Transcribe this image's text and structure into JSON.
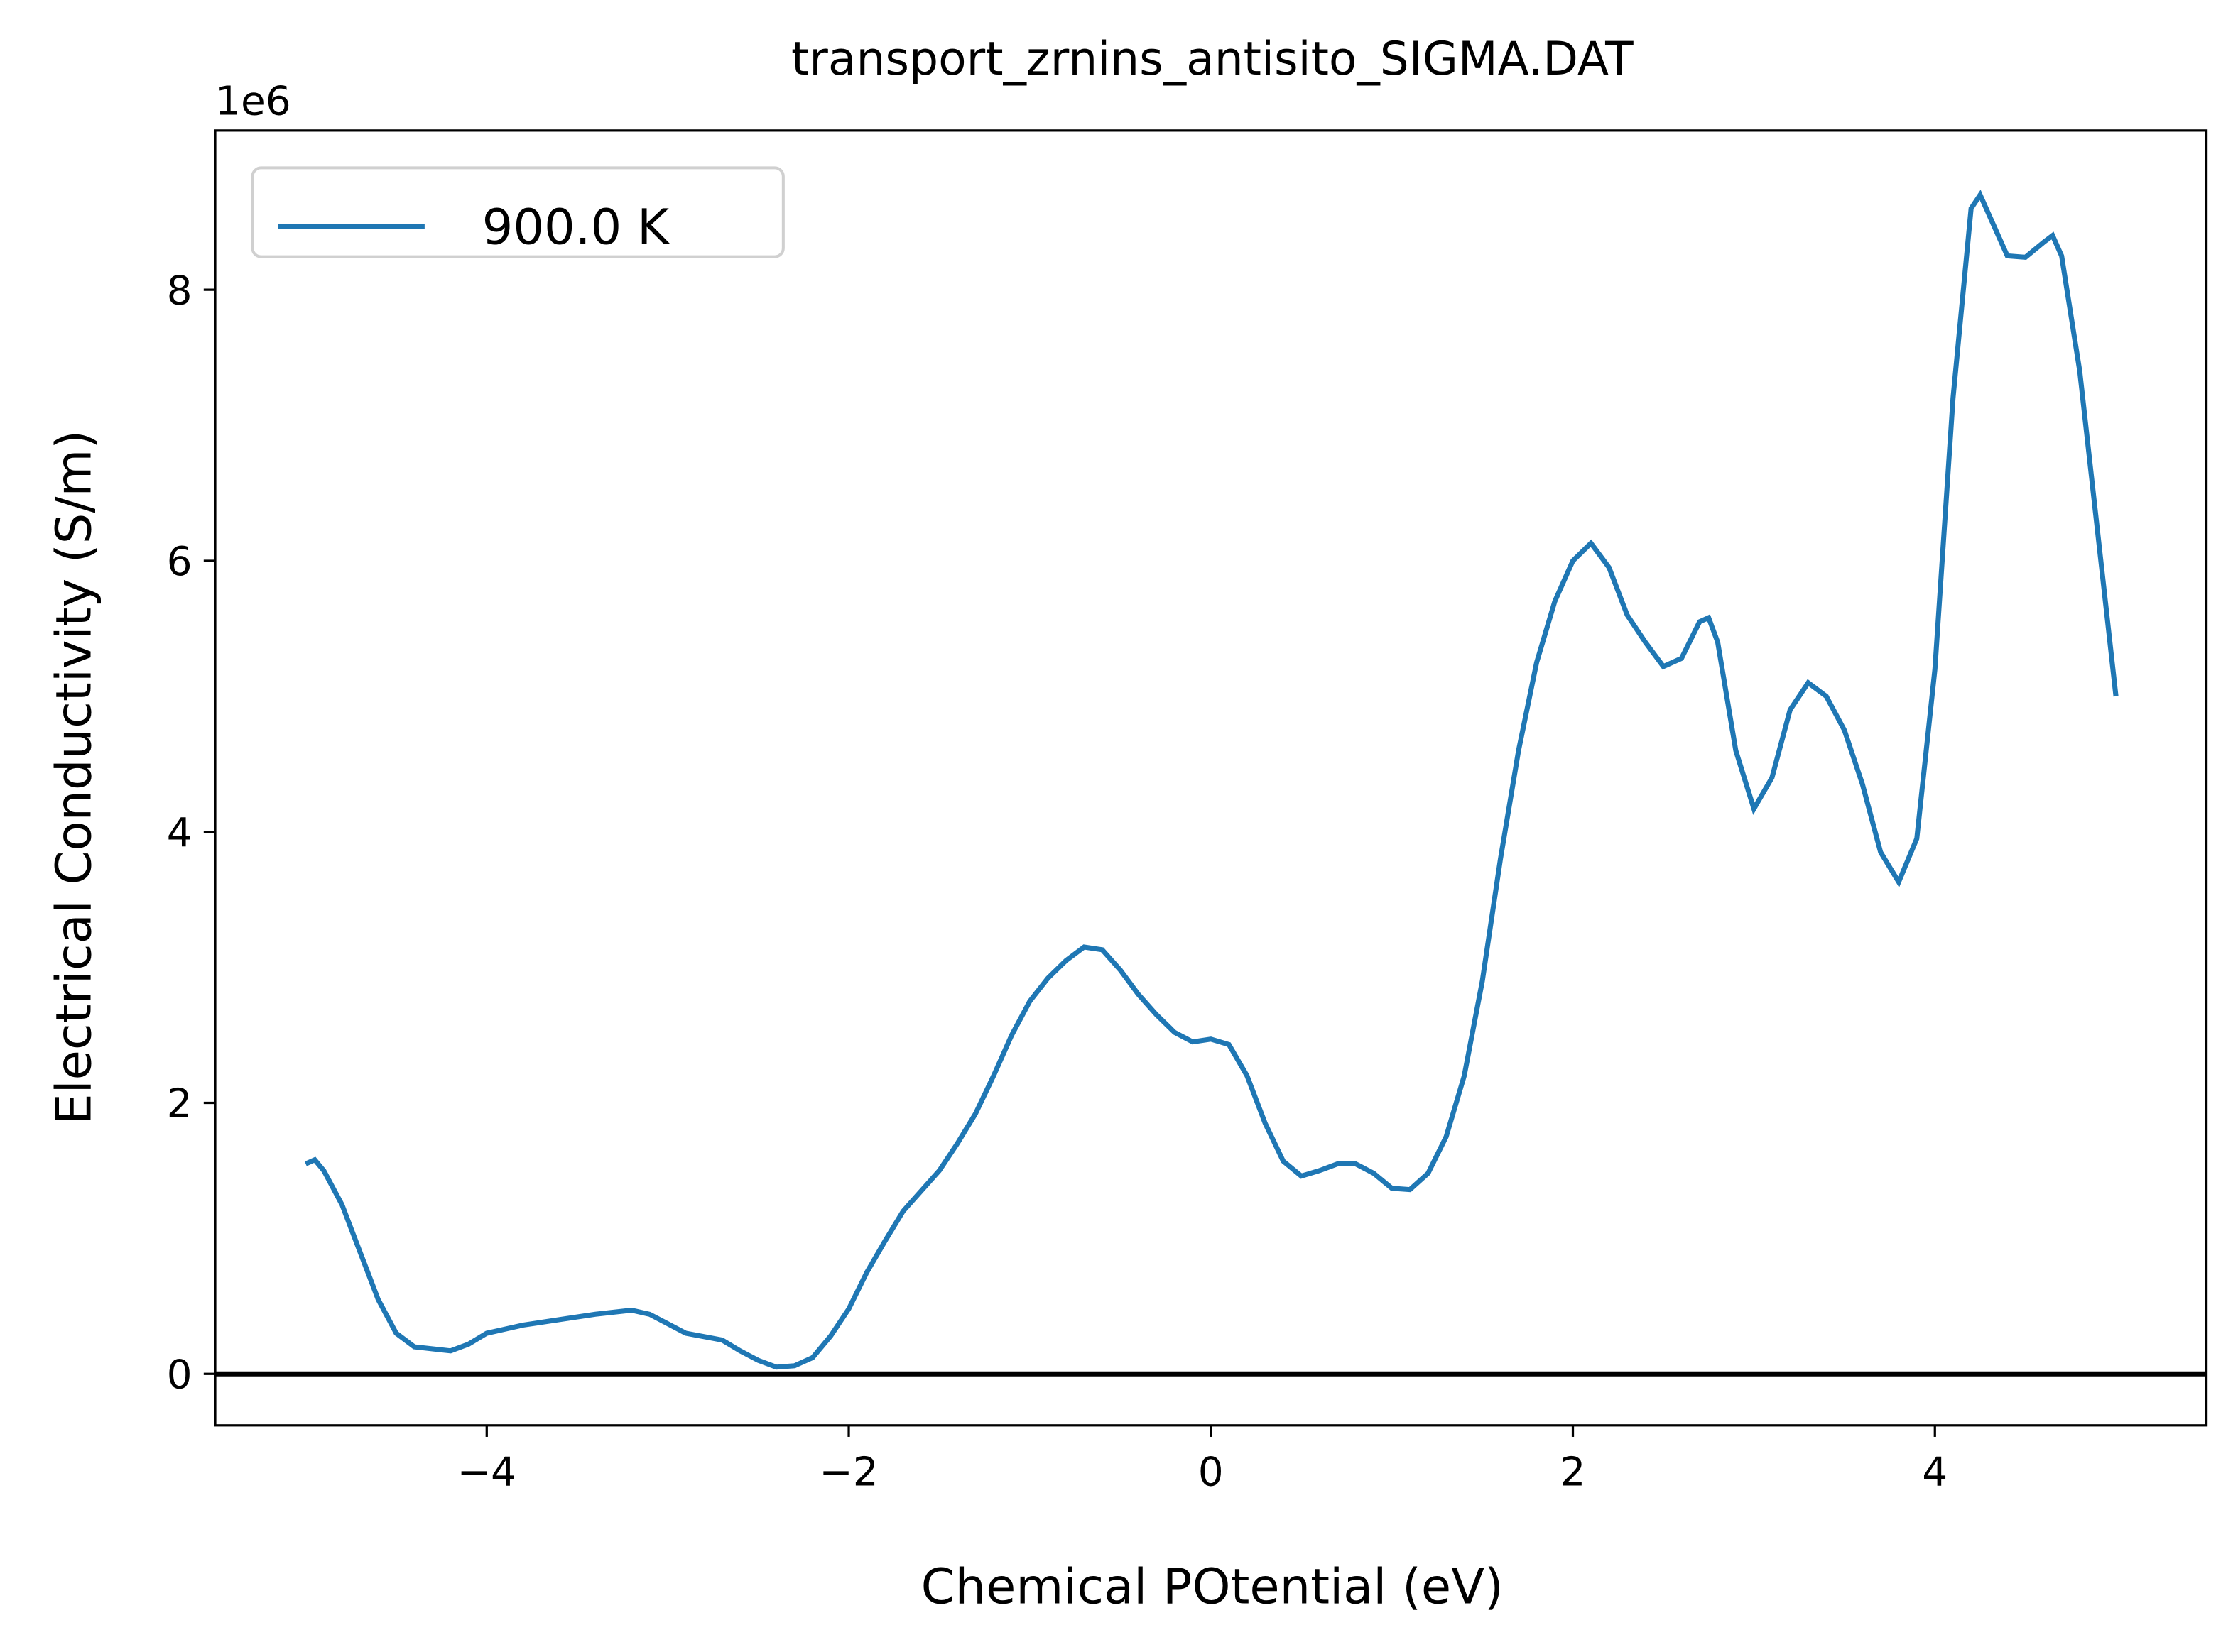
{
  "chart_data": {
    "type": "line",
    "title": "transport_zrnins_antisito_SIGMA.DAT",
    "x_label": "Chemical POtential (eV)",
    "y_label": "Electrical Conductivity (S/m)",
    "y_offset_label": "1e6",
    "x": [
      -5.0,
      -4.95,
      -4.9,
      -4.8,
      -4.7,
      -4.6,
      -4.5,
      -4.4,
      -4.2,
      -4.1,
      -4.0,
      -3.8,
      -3.6,
      -3.4,
      -3.2,
      -3.1,
      -3.0,
      -2.9,
      -2.7,
      -2.6,
      -2.5,
      -2.4,
      -2.3,
      -2.2,
      -2.1,
      -2.0,
      -1.9,
      -1.8,
      -1.7,
      -1.6,
      -1.5,
      -1.4,
      -1.3,
      -1.2,
      -1.1,
      -1.0,
      -0.9,
      -0.8,
      -0.7,
      -0.6,
      -0.5,
      -0.4,
      -0.3,
      -0.2,
      -0.1,
      0.0,
      0.1,
      0.2,
      0.3,
      0.4,
      0.5,
      0.6,
      0.7,
      0.8,
      0.9,
      1.0,
      1.1,
      1.2,
      1.3,
      1.4,
      1.5,
      1.6,
      1.7,
      1.8,
      1.9,
      2.0,
      2.1,
      2.2,
      2.3,
      2.4,
      2.5,
      2.6,
      2.7,
      2.75,
      2.8,
      2.9,
      3.0,
      3.1,
      3.2,
      3.3,
      3.4,
      3.5,
      3.6,
      3.7,
      3.8,
      3.9,
      4.0,
      4.1,
      4.2,
      4.25,
      4.3,
      4.4,
      4.5,
      4.6,
      4.65,
      4.7,
      4.8,
      4.9,
      5.0
    ],
    "series": [
      {
        "name": "900.0 K",
        "color": "#1f77b4",
        "values": [
          1550000,
          1580000,
          1500000,
          1250000,
          900000,
          550000,
          300000,
          200000,
          170000,
          220000,
          300000,
          360000,
          400000,
          440000,
          470000,
          440000,
          370000,
          300000,
          250000,
          170000,
          100000,
          50000,
          60000,
          120000,
          280000,
          480000,
          750000,
          980000,
          1200000,
          1350000,
          1500000,
          1700000,
          1920000,
          2200000,
          2500000,
          2750000,
          2920000,
          3050000,
          3150000,
          3130000,
          2980000,
          2800000,
          2650000,
          2520000,
          2450000,
          2470000,
          2430000,
          2200000,
          1850000,
          1570000,
          1460000,
          1500000,
          1550000,
          1550000,
          1480000,
          1370000,
          1360000,
          1480000,
          1750000,
          2200000,
          2900000,
          3800000,
          4600000,
          5250000,
          5700000,
          6000000,
          6130000,
          5950000,
          5600000,
          5400000,
          5220000,
          5280000,
          5550000,
          5580000,
          5400000,
          4600000,
          4170000,
          4400000,
          4900000,
          5100000,
          5000000,
          4750000,
          4350000,
          3850000,
          3630000,
          3950000,
          5200000,
          7200000,
          8600000,
          8700000,
          8550000,
          8250000,
          8240000,
          8350000,
          8400000,
          8250000,
          7400000,
          6200000,
          5000000
        ]
      }
    ],
    "hlines": [
      0
    ],
    "xlim": [
      -5.5,
      5.5
    ],
    "ylim": [
      -380000,
      9175000
    ],
    "xticks": [
      {
        "value": -4,
        "label": "−4"
      },
      {
        "value": -2,
        "label": "−2"
      },
      0,
      2,
      4
    ],
    "yticks": [
      {
        "value": 0,
        "label": "0"
      },
      {
        "value": 2000000,
        "label": "2"
      },
      {
        "value": 4000000,
        "label": "4"
      },
      {
        "value": 6000000,
        "label": "6"
      },
      {
        "value": 8000000,
        "label": "8"
      }
    ],
    "legend": "upper left"
  }
}
